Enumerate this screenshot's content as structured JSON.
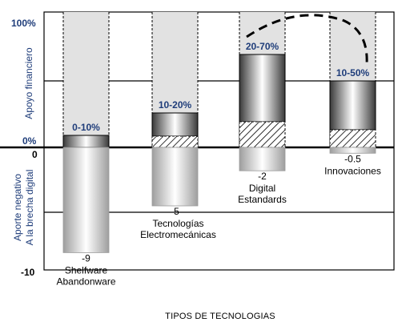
{
  "chart_data": {
    "type": "bar",
    "xlabel": "TIPOS DE TECNOLOGIAS",
    "ylabel_top": "Apoyo financiero",
    "ylabel_bottom": [
      "Aporte negativo",
      "A la brecha digital"
    ],
    "top_ticks": [
      "100%",
      "0%"
    ],
    "bottom_ticks": [
      "0",
      "-10"
    ],
    "top_range": [
      0,
      100
    ],
    "bottom_range": [
      -10,
      0
    ],
    "categories": [
      {
        "lines": [
          "Shelfware",
          "Abandonware"
        ],
        "financial_label": "0-10%",
        "financial_low": 0,
        "financial_high": 10,
        "gap_value": -9,
        "gap_label": "-9"
      },
      {
        "lines": [
          "Tecnologías",
          "Electromecánicas"
        ],
        "financial_label": "10-20%",
        "financial_low": 10,
        "financial_high": 20,
        "gap_value": -5,
        "gap_label": "-5"
      },
      {
        "lines": [
          "Digital",
          "Estandards"
        ],
        "financial_label": "20-70%",
        "financial_low": 20,
        "financial_high": 70,
        "gap_value": -2,
        "gap_label": "-2"
      },
      {
        "lines": [
          "Innovaciones"
        ],
        "financial_label": "10-50%",
        "financial_low": 10,
        "financial_high": 50,
        "gap_value": -0.5,
        "gap_label": "-0.5"
      }
    ],
    "colors": {
      "label_blue": "#1f3d7a",
      "band_gray": "#e2e2e2"
    }
  }
}
